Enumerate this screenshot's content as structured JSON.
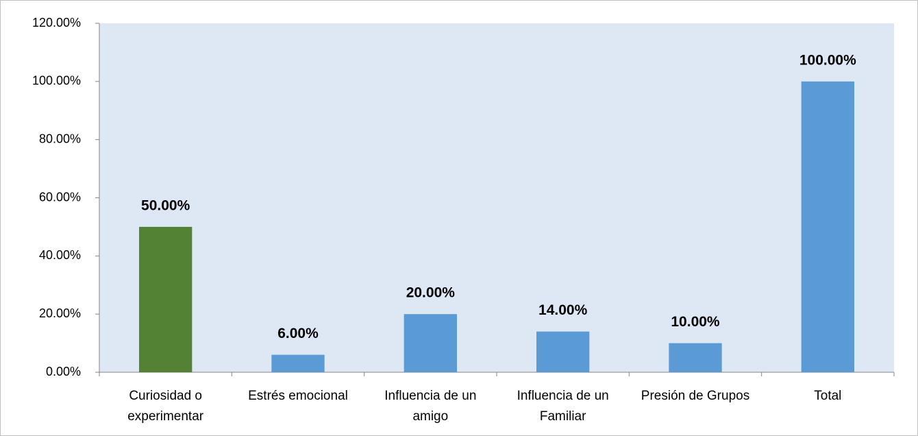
{
  "chart_data": {
    "type": "bar",
    "categories": [
      "Curiosidad o experimentar",
      "Estrés emocional",
      "Influencia de un amigo",
      "Influencia de un Familiar",
      "Presión de Grupos",
      "Total"
    ],
    "values": [
      50,
      6,
      20,
      14,
      10,
      100
    ],
    "value_labels": [
      "50.00%",
      "6.00%",
      "20.00%",
      "14.00%",
      "10.00%",
      "100.00%"
    ],
    "colors": [
      "#548235",
      "#5b9bd5",
      "#5b9bd5",
      "#5b9bd5",
      "#5b9bd5",
      "#5b9bd5"
    ],
    "ylim": [
      0,
      120
    ],
    "yticks": [
      {
        "value": 0,
        "label": "0.00%"
      },
      {
        "value": 20,
        "label": "20.00%"
      },
      {
        "value": 40,
        "label": "40.00%"
      },
      {
        "value": 60,
        "label": "60.00%"
      },
      {
        "value": 80,
        "label": "80.00%"
      },
      {
        "value": 100,
        "label": "100.00%"
      },
      {
        "value": 120,
        "label": "120.00%"
      }
    ],
    "grid": false
  }
}
